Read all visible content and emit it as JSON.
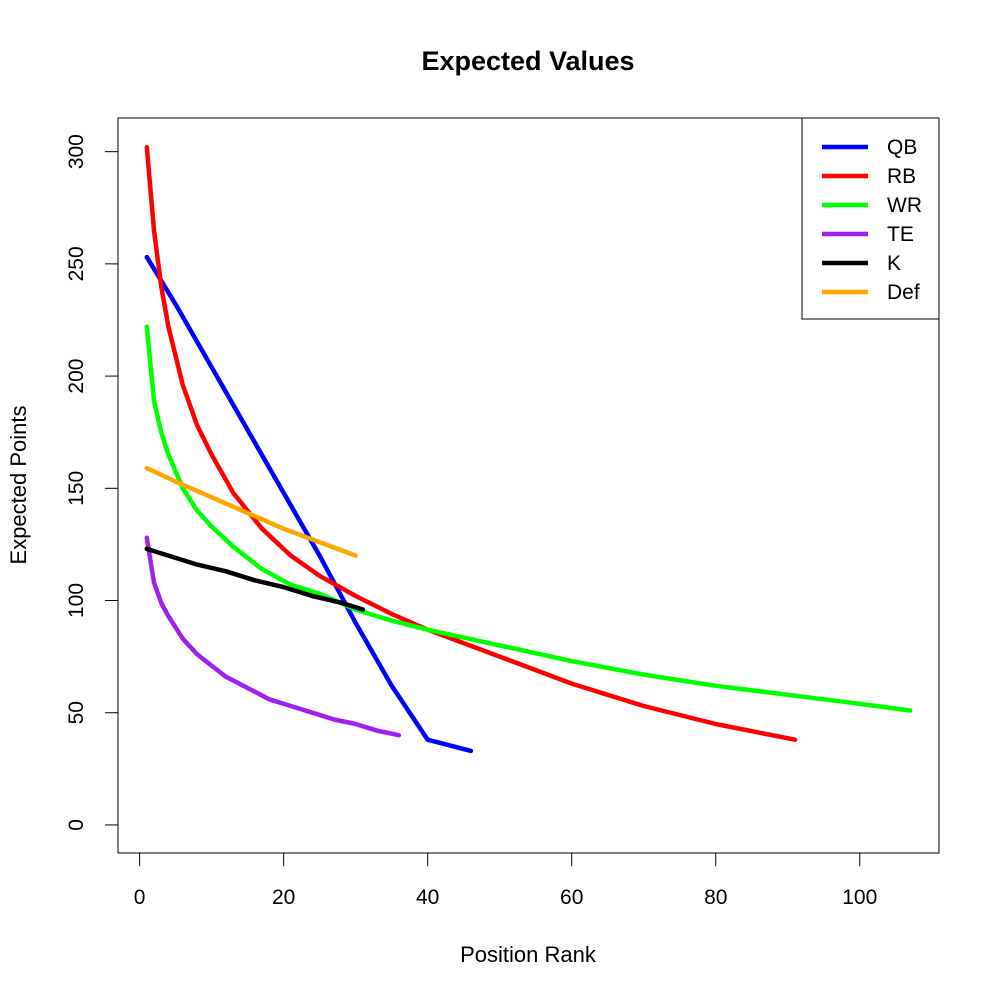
{
  "chart_data": {
    "type": "line",
    "title": "Expected Values",
    "xlabel": "Position Rank",
    "ylabel": "Expected Points",
    "xlim": [
      -3,
      111
    ],
    "ylim": [
      -12.5,
      315
    ],
    "xticks": [
      0,
      20,
      40,
      60,
      80,
      100
    ],
    "yticks": [
      0,
      50,
      100,
      150,
      200,
      250,
      300
    ],
    "legend_position": "top-right",
    "series": [
      {
        "name": "QB",
        "color": "#0000ff",
        "x": [
          1,
          5,
          10,
          15,
          20,
          25,
          30,
          35,
          40,
          46
        ],
        "y": [
          253,
          232,
          204,
          176,
          148,
          120,
          90,
          62,
          38,
          33
        ]
      },
      {
        "name": "RB",
        "color": "#ff0000",
        "x": [
          1,
          2,
          3,
          4,
          6,
          8,
          10,
          13,
          17,
          21,
          25,
          30,
          35,
          40,
          50,
          60,
          70,
          80,
          91
        ],
        "y": [
          302,
          265,
          240,
          222,
          196,
          178,
          165,
          148,
          132,
          120,
          111,
          102,
          94,
          87,
          75,
          63,
          53,
          45,
          38
        ]
      },
      {
        "name": "WR",
        "color": "#00ff00",
        "x": [
          1,
          2,
          3,
          4,
          6,
          8,
          10,
          13,
          17,
          21,
          25,
          30,
          35,
          40,
          50,
          60,
          70,
          80,
          90,
          100,
          107
        ],
        "y": [
          222,
          189,
          175,
          165,
          150,
          140,
          133,
          124,
          114,
          107,
          103,
          96,
          91,
          87,
          80,
          73,
          67,
          62,
          58,
          54,
          51
        ]
      },
      {
        "name": "TE",
        "color": "#a020f0",
        "x": [
          1,
          2,
          3,
          4,
          6,
          8,
          10,
          12,
          15,
          18,
          21,
          24,
          27,
          30,
          33,
          36
        ],
        "y": [
          128,
          108,
          99,
          93,
          83,
          76,
          71,
          66,
          61,
          56,
          53,
          50,
          47,
          45,
          42,
          40
        ]
      },
      {
        "name": "K",
        "color": "#000000",
        "x": [
          1,
          4,
          6,
          8,
          12,
          16,
          20,
          24,
          28,
          31
        ],
        "y": [
          123,
          120,
          118,
          116,
          113,
          109,
          106,
          102,
          99,
          96
        ]
      },
      {
        "name": "Def",
        "color": "#ffa500",
        "x": [
          1,
          5,
          10,
          15,
          20,
          25,
          30
        ],
        "y": [
          159,
          153,
          146,
          139,
          132,
          126,
          120
        ]
      }
    ]
  }
}
